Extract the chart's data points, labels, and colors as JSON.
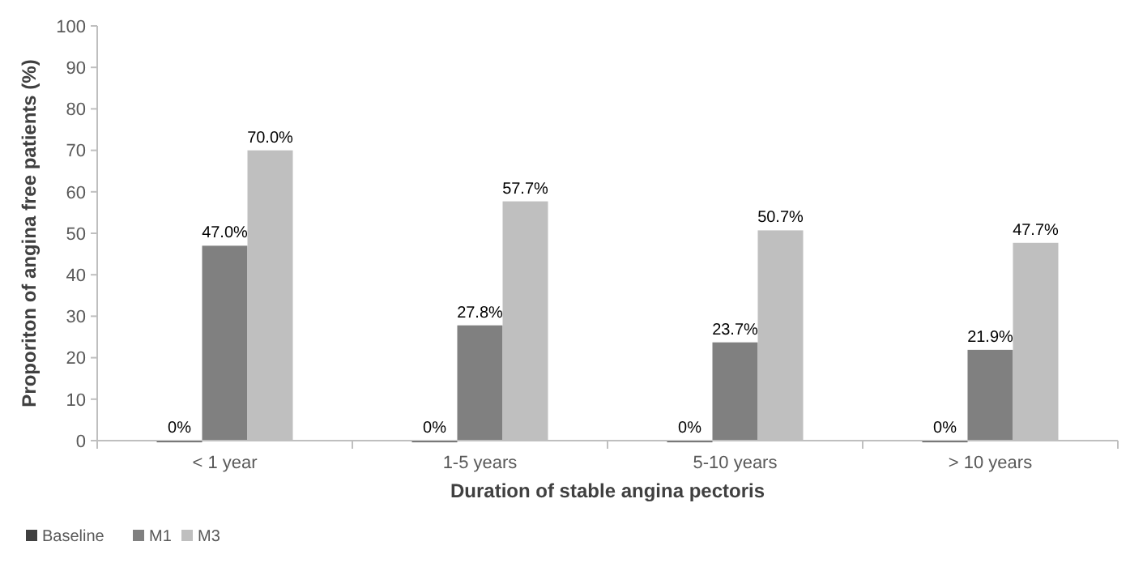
{
  "chart_data": {
    "type": "bar",
    "xlabel": "Duration of stable angina pectoris",
    "ylabel": "Proporiton of angina free patients (%)",
    "categories": [
      "< 1 year",
      "1-5 years",
      "5-10 years",
      "> 10 years"
    ],
    "series": [
      {
        "name": "Baseline",
        "color": "#404040",
        "values": [
          0,
          0,
          0,
          0
        ],
        "value_labels": [
          "0%",
          "0%",
          "0%",
          "0%"
        ]
      },
      {
        "name": "M1",
        "color": "#808080",
        "values": [
          47.0,
          27.8,
          23.7,
          21.9
        ],
        "value_labels": [
          "47.0%",
          "27.8%",
          "23.7%",
          "21.9%"
        ]
      },
      {
        "name": "M3",
        "color": "#bfbfbf",
        "values": [
          70.0,
          57.7,
          50.7,
          47.7
        ],
        "value_labels": [
          "70.0%",
          "57.7%",
          "50.7%",
          "47.7%"
        ]
      }
    ],
    "ylim": [
      0,
      100
    ],
    "yticks": [
      0,
      10,
      20,
      30,
      40,
      50,
      60,
      70,
      80,
      90,
      100
    ],
    "grid": false,
    "legend": "bottom left"
  }
}
